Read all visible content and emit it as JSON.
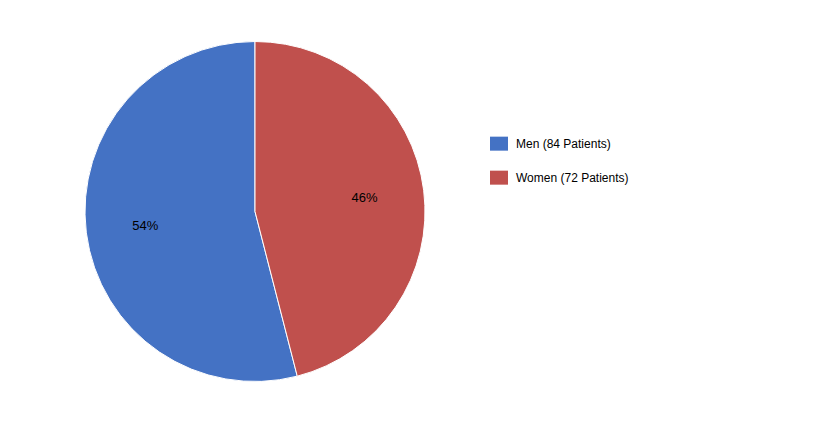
{
  "chart_data": {
    "type": "pie",
    "categories": [
      "Men (84 Patients)",
      "Women (72 Patients)"
    ],
    "values": [
      54,
      46
    ],
    "value_labels": [
      "54%",
      "46%"
    ],
    "colors": [
      "#4472C4",
      "#C0504D"
    ],
    "data_labels": true,
    "legend": "right"
  }
}
